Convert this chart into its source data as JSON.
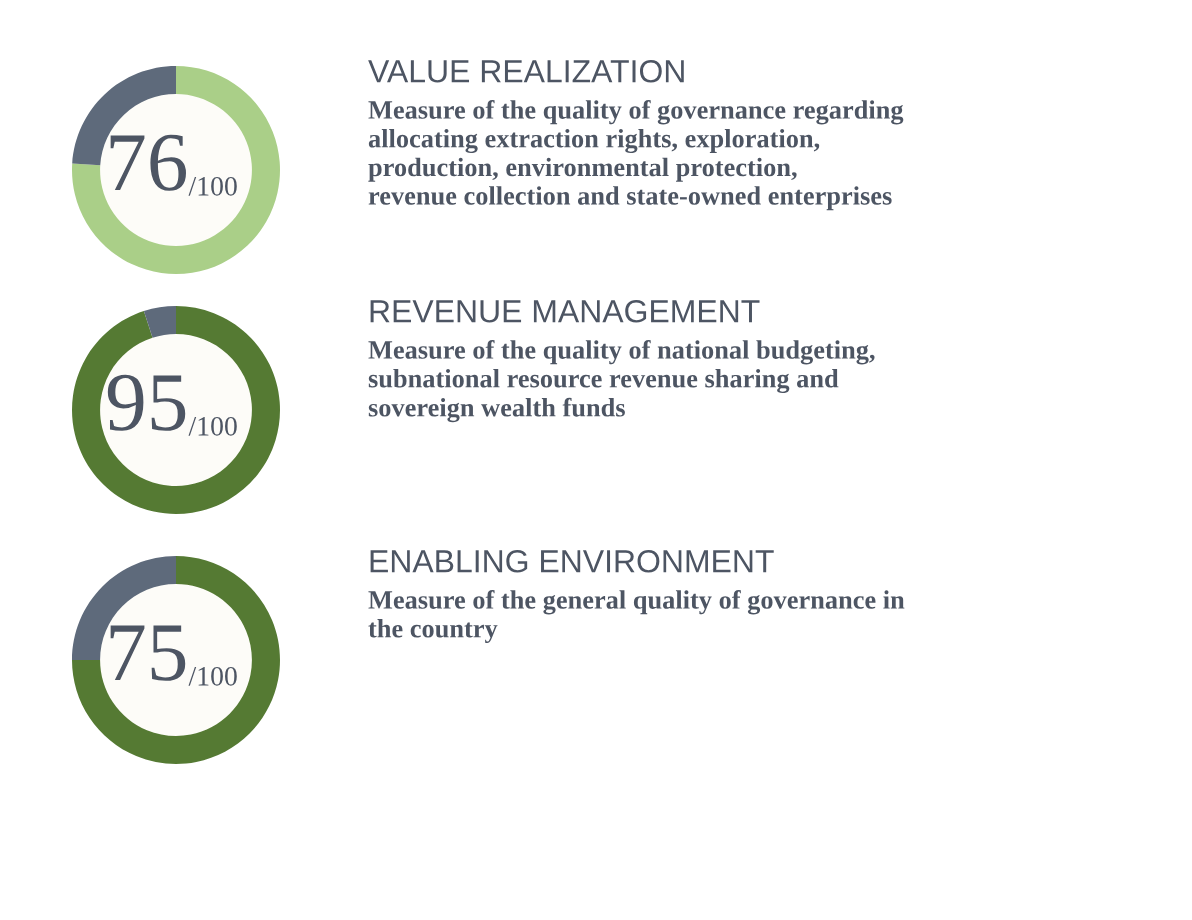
{
  "chart_data": [
    {
      "type": "donut",
      "title": "VALUE REALIZATION",
      "subtitle": "Measure of the quality of governance regarding\nallocating extraction rights, exploration,\nproduction, environmental protection,\nrevenue collection and state-owned enterprises",
      "categories": [
        null,
        null
      ],
      "values": [
        76,
        24
      ],
      "colors": [
        "#aacf88",
        "#5e6a7b"
      ],
      "annotations": [
        "76",
        "/100"
      ]
    },
    {
      "type": "donut",
      "title": "REVENUE MANAGEMENT",
      "subtitle": "Measure of the quality of national budgeting,\nsubnational resource revenue sharing and\nsovereign wealth funds",
      "categories": [
        null,
        null
      ],
      "values": [
        95,
        5
      ],
      "colors": [
        "#557a33",
        "#5e6a7b"
      ],
      "annotations": [
        "95",
        "/100"
      ]
    },
    {
      "type": "donut",
      "title": "ENABLING ENVIRONMENT",
      "subtitle": "Measure of the general quality of governance in\nthe country",
      "categories": [
        null,
        null
      ],
      "values": [
        75,
        25
      ],
      "colors": [
        "#557a33",
        "#5e6a7b"
      ],
      "annotations": [
        "75",
        "/100"
      ]
    }
  ]
}
